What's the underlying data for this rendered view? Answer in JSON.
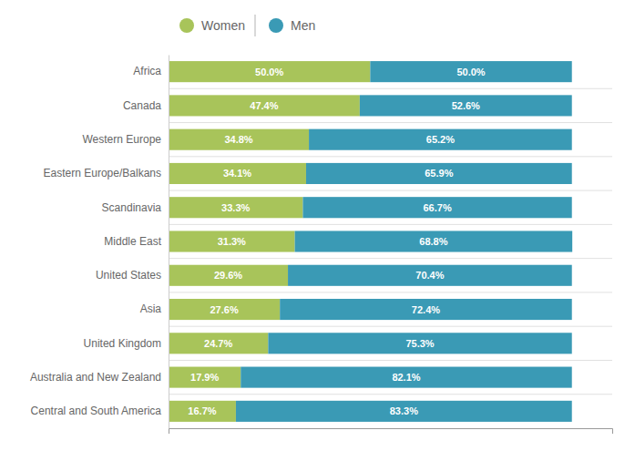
{
  "chart_data": {
    "type": "bar",
    "orientation": "horizontal",
    "stacked": true,
    "categories": [
      "Africa",
      "Canada",
      "Western Europe",
      "Eastern Europe/Balkans",
      "Scandinavia",
      "Middle East",
      "United States",
      "Asia",
      "United Kingdom",
      "Australia and New Zealand",
      "Central and South America"
    ],
    "series": [
      {
        "name": "Women",
        "color": "#a8c45a",
        "values": [
          50.0,
          47.4,
          34.8,
          34.1,
          33.3,
          31.3,
          29.6,
          27.6,
          24.7,
          17.9,
          16.7
        ],
        "value_labels": [
          "50.0%",
          "47.4%",
          "34.8%",
          "34.1%",
          "33.3%",
          "31.3%",
          "29.6%",
          "27.6%",
          "24.7%",
          "17.9%",
          "16.7%"
        ]
      },
      {
        "name": "Men",
        "color": "#3a9ab5",
        "values": [
          50.0,
          52.6,
          65.2,
          65.9,
          66.7,
          68.8,
          70.4,
          72.4,
          75.3,
          82.1,
          83.3
        ],
        "value_labels": [
          "50.0%",
          "52.6%",
          "65.2%",
          "65.9%",
          "66.7%",
          "68.8%",
          "70.4%",
          "72.4%",
          "75.3%",
          "82.1%",
          "83.3%"
        ]
      }
    ],
    "xlim": [
      0,
      110
    ],
    "data_labels": true,
    "tick_labels": "y",
    "legend": "top"
  }
}
